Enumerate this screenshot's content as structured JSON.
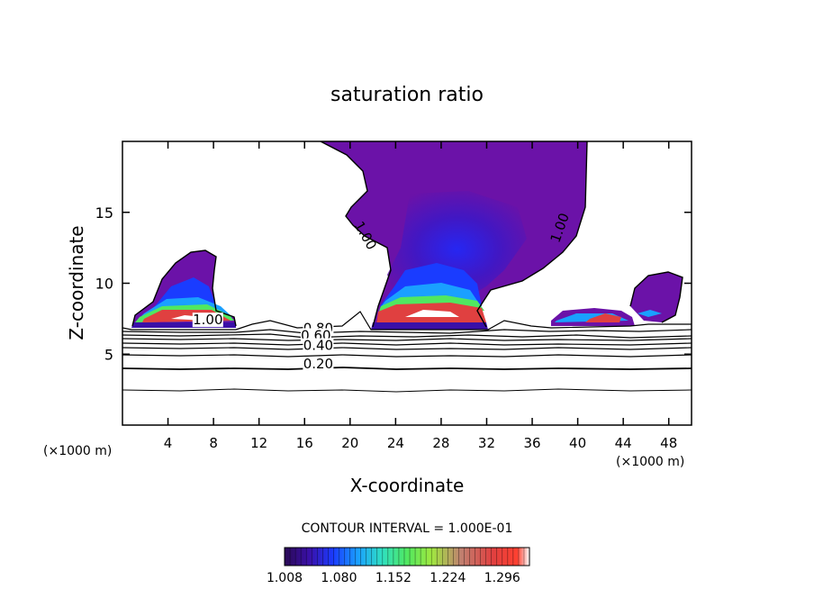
{
  "chart_data": {
    "type": "contour",
    "title": "saturation ratio",
    "xlabel": "X-coordinate",
    "ylabel": "Z-coordinate",
    "x_unit_left": "(×1000 m)",
    "x_unit_right": "(×1000 m)",
    "xlim": [
      0,
      50
    ],
    "ylim": [
      0,
      20
    ],
    "x_ticks": [
      4,
      8,
      12,
      16,
      20,
      24,
      28,
      32,
      36,
      40,
      44,
      48
    ],
    "y_ticks": [
      5,
      10,
      15
    ],
    "contour_interval_text": "CONTOUR INTERVAL = 1.000E-01",
    "contour_labels": [
      {
        "text": "1.00",
        "x": 7.5,
        "z": 7.1
      },
      {
        "text": "1.00",
        "x": 21.0,
        "z": 13.2
      },
      {
        "text": "1.00",
        "x": 38.8,
        "z": 13.8
      },
      {
        "text": "0.80",
        "x": 17.2,
        "z": 6.5
      },
      {
        "text": "0.60",
        "x": 17.0,
        "z": 6.0
      },
      {
        "text": "0.40",
        "x": 17.2,
        "z": 5.3
      },
      {
        "text": "0.20",
        "x": 17.2,
        "z": 4.0
      }
    ],
    "colorbar": {
      "min": 1.008,
      "max": 1.332,
      "tick_labels": [
        "1.008",
        "1.080",
        "1.152",
        "1.224",
        "1.296"
      ],
      "tick_values": [
        1.008,
        1.08,
        1.152,
        1.224,
        1.296
      ],
      "colors": [
        "#2a0a55",
        "#3a10a8",
        "#1a3cff",
        "#1aa0ff",
        "#30e0c0",
        "#50e860",
        "#a0e840",
        "#c08070",
        "#e04040",
        "#ff4030",
        "#ffffff"
      ]
    },
    "colors": {
      "purple_outer": "#6b12a8",
      "purple_mid": "#5a10b0",
      "purple_core": "#4a18b8"
    }
  }
}
